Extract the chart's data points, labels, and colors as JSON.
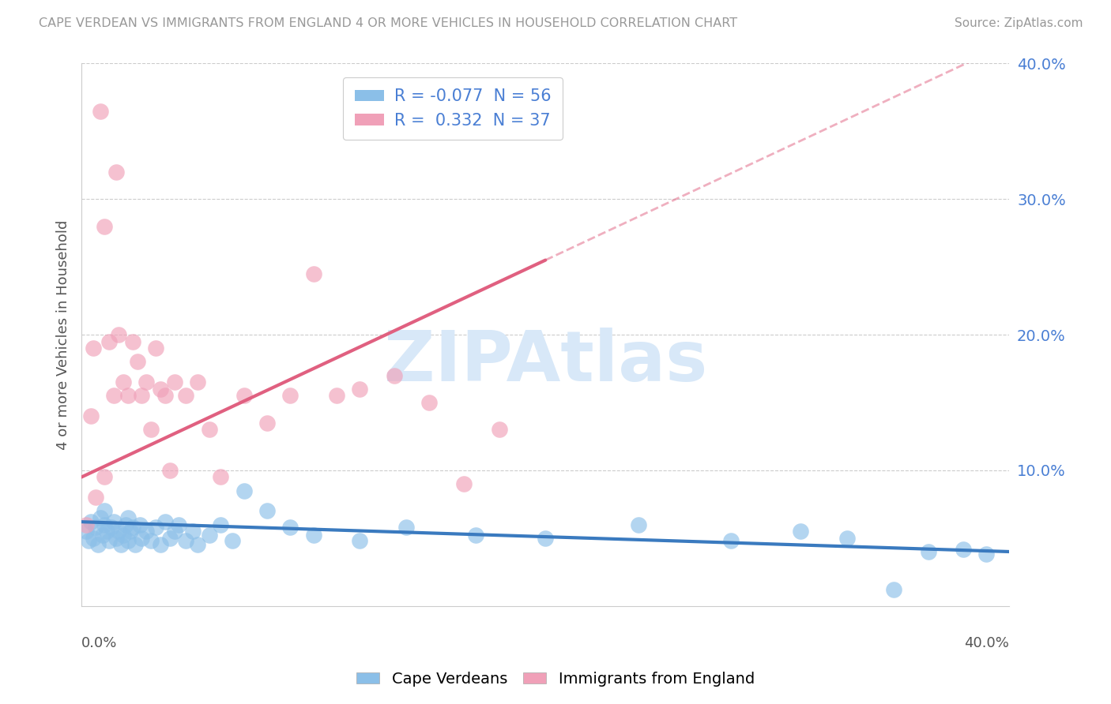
{
  "title": "CAPE VERDEAN VS IMMIGRANTS FROM ENGLAND 4 OR MORE VEHICLES IN HOUSEHOLD CORRELATION CHART",
  "source": "Source: ZipAtlas.com",
  "ylabel": "4 or more Vehicles in Household",
  "ylim": [
    0,
    0.4
  ],
  "xlim": [
    0,
    0.4
  ],
  "ytick_vals": [
    0.1,
    0.2,
    0.3,
    0.4
  ],
  "ytick_labels": [
    "10.0%",
    "20.0%",
    "30.0%",
    "40.0%"
  ],
  "legend_R_blue": "R = -0.077",
  "legend_N_blue": "N = 56",
  "legend_R_pink": "R =  0.332",
  "legend_N_pink": "N = 37",
  "legend_bottom_1": "Cape Verdeans",
  "legend_bottom_2": "Immigrants from England",
  "watermark": "ZIPAtlas",
  "blue_dot_color": "#8bbfe8",
  "pink_dot_color": "#f0a0b8",
  "blue_line_color": "#3a7abf",
  "pink_line_color": "#e06080",
  "background_color": "#ffffff",
  "grid_color": "#cccccc",
  "title_color": "#999999",
  "axis_label_color": "#4a7fd4",
  "watermark_color": "#d8e8f8",
  "blue_scatter_x": [
    0.002,
    0.003,
    0.004,
    0.005,
    0.006,
    0.007,
    0.008,
    0.009,
    0.01,
    0.01,
    0.011,
    0.012,
    0.013,
    0.014,
    0.015,
    0.016,
    0.017,
    0.018,
    0.019,
    0.02,
    0.02,
    0.021,
    0.022,
    0.023,
    0.025,
    0.026,
    0.028,
    0.03,
    0.032,
    0.034,
    0.036,
    0.038,
    0.04,
    0.042,
    0.045,
    0.048,
    0.05,
    0.055,
    0.06,
    0.065,
    0.07,
    0.08,
    0.09,
    0.1,
    0.12,
    0.14,
    0.17,
    0.2,
    0.24,
    0.28,
    0.31,
    0.33,
    0.35,
    0.365,
    0.38,
    0.39
  ],
  "blue_scatter_y": [
    0.055,
    0.048,
    0.062,
    0.05,
    0.058,
    0.045,
    0.065,
    0.052,
    0.06,
    0.07,
    0.055,
    0.048,
    0.058,
    0.062,
    0.05,
    0.055,
    0.045,
    0.052,
    0.06,
    0.048,
    0.065,
    0.055,
    0.058,
    0.045,
    0.06,
    0.05,
    0.055,
    0.048,
    0.058,
    0.045,
    0.062,
    0.05,
    0.055,
    0.06,
    0.048,
    0.055,
    0.045,
    0.052,
    0.06,
    0.048,
    0.085,
    0.07,
    0.058,
    0.052,
    0.048,
    0.058,
    0.052,
    0.05,
    0.06,
    0.048,
    0.055,
    0.05,
    0.012,
    0.04,
    0.042,
    0.038
  ],
  "pink_scatter_x": [
    0.002,
    0.004,
    0.005,
    0.006,
    0.008,
    0.01,
    0.01,
    0.012,
    0.014,
    0.015,
    0.016,
    0.018,
    0.02,
    0.022,
    0.024,
    0.026,
    0.028,
    0.03,
    0.032,
    0.034,
    0.036,
    0.038,
    0.04,
    0.045,
    0.05,
    0.055,
    0.06,
    0.07,
    0.08,
    0.09,
    0.1,
    0.11,
    0.12,
    0.135,
    0.15,
    0.165,
    0.18
  ],
  "pink_scatter_y": [
    0.06,
    0.14,
    0.19,
    0.08,
    0.365,
    0.095,
    0.28,
    0.195,
    0.155,
    0.32,
    0.2,
    0.165,
    0.155,
    0.195,
    0.18,
    0.155,
    0.165,
    0.13,
    0.19,
    0.16,
    0.155,
    0.1,
    0.165,
    0.155,
    0.165,
    0.13,
    0.095,
    0.155,
    0.135,
    0.155,
    0.245,
    0.155,
    0.16,
    0.17,
    0.15,
    0.09,
    0.13
  ],
  "blue_line_x0": 0.0,
  "blue_line_x1": 0.4,
  "blue_line_y0": 0.062,
  "blue_line_y1": 0.04,
  "pink_line_x0": 0.0,
  "pink_line_x1": 0.2,
  "pink_line_y0": 0.095,
  "pink_line_y1": 0.255
}
